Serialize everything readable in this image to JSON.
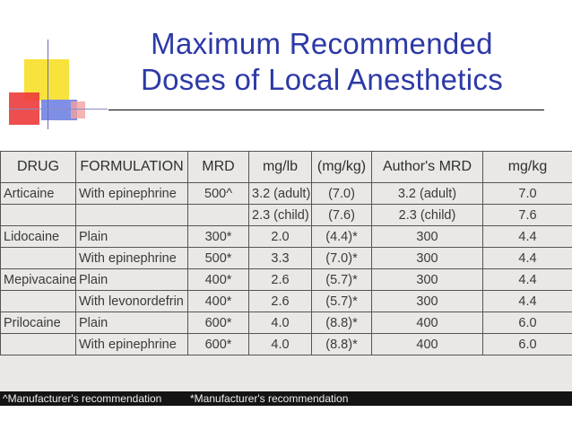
{
  "title": {
    "line1": "Maximum Recommended",
    "line2": "Doses of Local Anesthetics"
  },
  "table": {
    "headers": [
      "DRUG",
      "FORMULATION",
      "MRD",
      "mg/lb",
      "(mg/kg)",
      "Author's MRD",
      "mg/kg"
    ],
    "rows": [
      [
        "Articaine",
        "With epinephrine",
        "500^",
        "3.2 (adult)",
        "(7.0)",
        "3.2 (adult)",
        "7.0"
      ],
      [
        "",
        "",
        "",
        "2.3 (child)",
        "(7.6)",
        "2.3 (child)",
        "7.6"
      ],
      [
        "Lidocaine",
        "Plain",
        "300*",
        "2.0",
        "(4.4)*",
        "300",
        "4.4"
      ],
      [
        "",
        "With epinephrine",
        "500*",
        "3.3",
        "(7.0)*",
        "300",
        "4.4"
      ],
      [
        "Mepivacaine",
        "Plain",
        "400*",
        "2.6",
        "(5.7)*",
        "300",
        "4.4"
      ],
      [
        "",
        "With levonordefrin",
        "400*",
        "2.6",
        "(5.7)*",
        "300",
        "4.4"
      ],
      [
        "Prilocaine",
        "Plain",
        "600*",
        "4.0",
        "(8.8)*",
        "400",
        "6.0"
      ],
      [
        "",
        "With epinephrine",
        "600*",
        "4.0",
        "(8.8)*",
        "400",
        "6.0"
      ]
    ]
  },
  "footnotes": {
    "left": "^Manufacturer's recommendation",
    "right": "*Manufacturer's recommendation"
  },
  "colors": {
    "title": "#2d39a6",
    "accent_yellow": "#f8e23c",
    "accent_red": "#ec3b3b",
    "accent_blue": "#7f8fe6"
  }
}
